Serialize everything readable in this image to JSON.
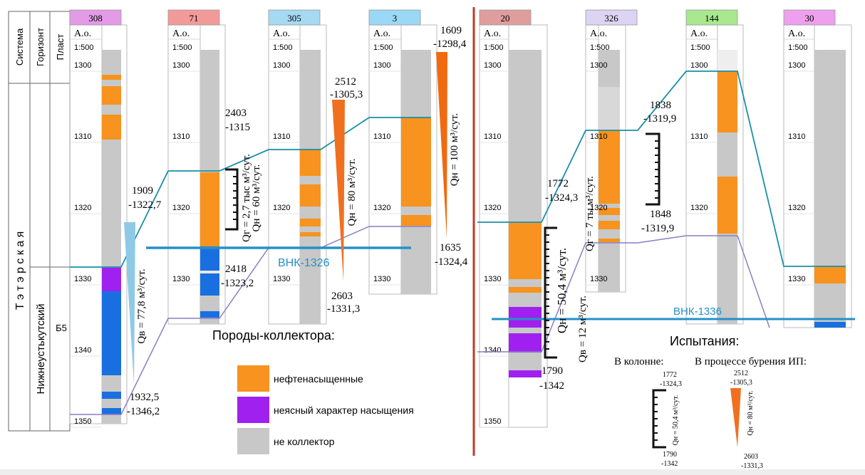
{
  "header": {
    "system": "Система",
    "horizon": "Горизонт",
    "layer": "Пласт",
    "system_name": "Т э т э р с к а я",
    "horizon_name": "Нижнеустькутский",
    "layer_name": "Б5"
  },
  "wells": [
    {
      "name": "308",
      "altitude": "А.о.",
      "scale": "1:500",
      "depths": [
        1300,
        1310,
        1320,
        1330,
        1340,
        1350
      ]
    },
    {
      "name": "71",
      "altitude": "А.о.",
      "scale": "1:500",
      "depths": [
        1300,
        1310,
        1320,
        1330
      ]
    },
    {
      "name": "305",
      "altitude": "А.о.",
      "scale": "1:500",
      "depths": [
        1300,
        1310,
        1320,
        1330
      ]
    },
    {
      "name": "3",
      "altitude": "А.о.",
      "scale": "1:500",
      "depths": [
        1300,
        1310,
        1320,
        1330
      ]
    },
    {
      "name": "20",
      "altitude": "А.о.",
      "scale": "1:500",
      "depths": [
        1300,
        1310,
        1320,
        1330,
        1340,
        1350
      ]
    },
    {
      "name": "326",
      "altitude": "А.о.",
      "scale": "1:500",
      "depths": [
        1300,
        1310,
        1320,
        1330
      ]
    },
    {
      "name": "144",
      "altitude": "А.о.",
      "scale": "1:500",
      "depths": [
        1300,
        1310,
        1320
      ]
    },
    {
      "name": "30",
      "altitude": "А.о.",
      "scale": "1:500",
      "depths": [
        1300,
        1310,
        1320,
        1330
      ]
    }
  ],
  "annotations": [
    [
      "1909",
      "-1322,7"
    ],
    [
      "1932,5",
      "-1346,2"
    ],
    [
      "2403",
      "-1315"
    ],
    [
      "2418",
      "-1323,2"
    ],
    [
      "2512",
      "-1305,3"
    ],
    [
      "2603",
      "-1331,3"
    ],
    [
      "1609",
      "-1298,4"
    ],
    [
      "1635",
      "-1324,4"
    ],
    [
      "1772",
      "-1324,3"
    ],
    [
      "1790",
      "-1342"
    ],
    [
      "1838",
      "-1319,9"
    ],
    [
      "1848",
      "-1319,9"
    ]
  ],
  "rates": [
    "Qв = 77,8 м³/сут.",
    "Qг = 2,7 тыс м³/сут.",
    "Qн = 60 м³/сут.",
    "Qн = 80 м³/сут.",
    "Qн = 100 м³/сут.",
    "Qн = 50,4 м³/сут.",
    "Qв = 12 м³/сут.",
    "Qг = 7 ты.м³/сут."
  ],
  "contacts": [
    "ВНК-1326",
    "ВНК-1336"
  ],
  "legend": {
    "title": "Породы-коллектора:",
    "items": [
      "нефтенасыщенные",
      "неясный характер насыщения",
      "не коллектор"
    ]
  },
  "tests": {
    "title": "Испытания:",
    "in_casing": "В колонне:",
    "while_drilling": "В процессе бурения ИП:",
    "casing_example": {
      "top": [
        "1772",
        "-1324,3"
      ],
      "rate": "Qн = 50,4 м³/сут.",
      "bottom": [
        "1790",
        "-1342"
      ]
    },
    "drilling_example": {
      "top": [
        "2512",
        "-1305,3"
      ],
      "rate": "Qн = 80 м³/сут.",
      "bottom": [
        "2603",
        "-1331,3"
      ]
    }
  }
}
